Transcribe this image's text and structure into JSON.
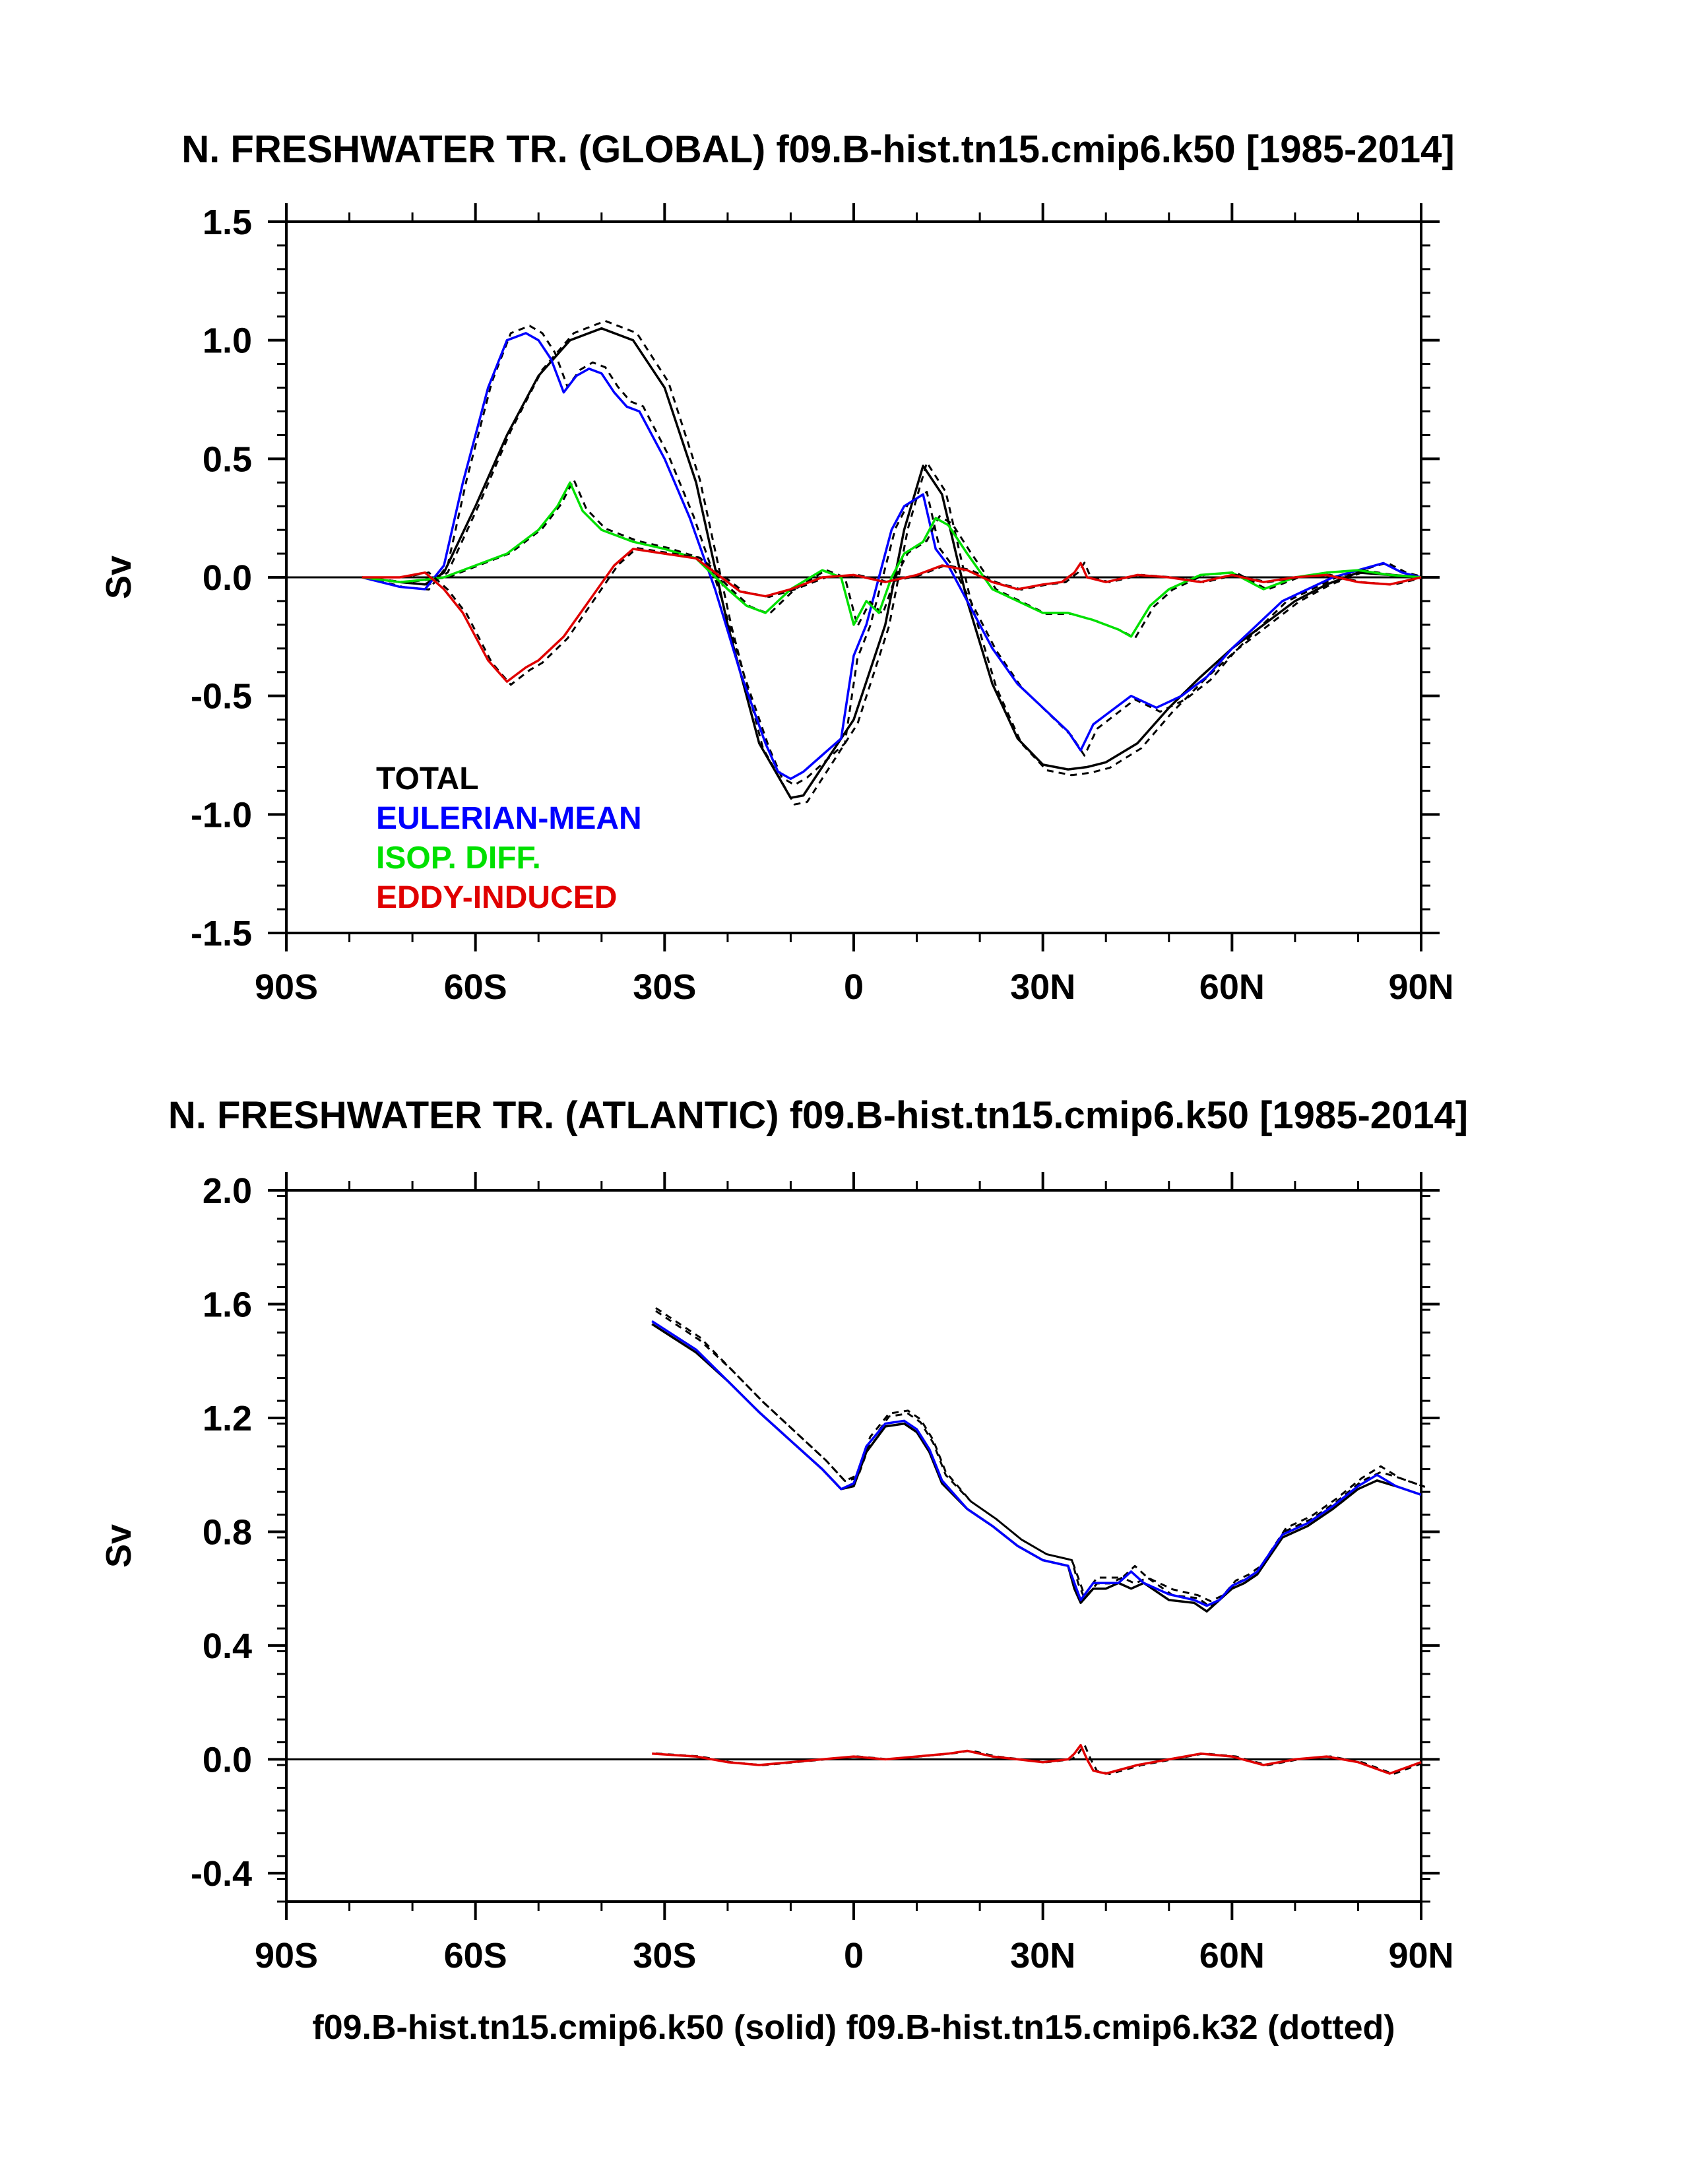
{
  "footer": "f09.B-hist.tn15.cmip6.k50 (solid) f09.B-hist.tn15.cmip6.k32 (dotted)",
  "colors": {
    "total": "#000000",
    "eulerian": "#0000ff",
    "isop": "#00e000",
    "eddy": "#e00000"
  },
  "chart_data": [
    {
      "type": "line",
      "title": "N. FRESHWATER TR. (GLOBAL) f09.B-hist.tn15.cmip6.k50 [1985-2014]",
      "xlabel": "",
      "ylabel": "Sv",
      "xlim": [
        -90,
        90
      ],
      "ylim": [
        -1.5,
        1.5
      ],
      "x_ticks": [
        -90,
        -60,
        -30,
        0,
        30,
        60,
        90
      ],
      "x_tick_labels": [
        "90S",
        "60S",
        "30S",
        "0",
        "30N",
        "60N",
        "90N"
      ],
      "y_ticks": [
        1.5,
        1.0,
        0.5,
        0.0,
        -0.5,
        -1.0,
        -1.5
      ],
      "y_tick_labels": [
        "1.5",
        "1.0",
        "0.5",
        "0.0",
        "-0.5",
        "-1.0",
        "-1.5"
      ],
      "legend": {
        "position": "lower-left",
        "entries": [
          "TOTAL",
          "EULERIAN-MEAN",
          "ISOP. DIFF.",
          "EDDY-INDUCED"
        ]
      },
      "series": [
        {
          "name": "TOTAL",
          "color": "#000000",
          "style": "solid",
          "x": [
            -78,
            -72,
            -68,
            -65,
            -60,
            -55,
            -50,
            -45,
            -40,
            -35,
            -30,
            -25,
            -20,
            -15,
            -10,
            -8,
            -5,
            0,
            5,
            8,
            11,
            14,
            18,
            22,
            26,
            30,
            34,
            37,
            40,
            45,
            50,
            55,
            60,
            65,
            70,
            75,
            80,
            85,
            90
          ],
          "y": [
            0,
            -0.02,
            -0.03,
            0.02,
            0.3,
            0.6,
            0.85,
            1.0,
            1.05,
            1.0,
            0.8,
            0.4,
            -0.2,
            -0.7,
            -0.93,
            -0.92,
            -0.8,
            -0.6,
            -0.2,
            0.2,
            0.47,
            0.35,
            -0.1,
            -0.45,
            -0.68,
            -0.79,
            -0.81,
            -0.8,
            -0.78,
            -0.7,
            -0.55,
            -0.42,
            -0.3,
            -0.2,
            -0.1,
            -0.03,
            0.02,
            0.01,
            0
          ]
        },
        {
          "name": "EULERIAN-MEAN",
          "color": "#0000ff",
          "style": "solid",
          "x": [
            -78,
            -72,
            -68,
            -65,
            -62,
            -58,
            -55,
            -52,
            -50,
            -48,
            -46,
            -44,
            -42,
            -40,
            -38,
            -36,
            -34,
            -30,
            -26,
            -22,
            -18,
            -14,
            -12,
            -10,
            -8,
            -5,
            -2,
            0,
            2,
            4,
            6,
            8,
            11,
            13,
            15,
            18,
            22,
            26,
            30,
            34,
            36,
            38,
            40,
            44,
            48,
            52,
            56,
            60,
            64,
            68,
            72,
            76,
            80,
            84,
            87,
            90
          ],
          "y": [
            0,
            -0.04,
            -0.05,
            0.05,
            0.4,
            0.8,
            1.0,
            1.03,
            1.0,
            0.92,
            0.78,
            0.85,
            0.88,
            0.86,
            0.78,
            0.72,
            0.7,
            0.5,
            0.25,
            -0.05,
            -0.4,
            -0.7,
            -0.82,
            -0.85,
            -0.82,
            -0.75,
            -0.68,
            -0.33,
            -0.2,
            0.0,
            0.2,
            0.3,
            0.35,
            0.12,
            0.05,
            -0.1,
            -0.3,
            -0.45,
            -0.55,
            -0.65,
            -0.73,
            -0.62,
            -0.58,
            -0.5,
            -0.55,
            -0.5,
            -0.42,
            -0.3,
            -0.2,
            -0.1,
            -0.05,
            0.0,
            0.03,
            0.06,
            0.02,
            0
          ]
        },
        {
          "name": "ISOP. DIFF.",
          "color": "#00e000",
          "style": "solid",
          "x": [
            -78,
            -72,
            -68,
            -65,
            -60,
            -55,
            -50,
            -47,
            -45,
            -43,
            -40,
            -35,
            -30,
            -25,
            -20,
            -17,
            -14,
            -10,
            -5,
            -2,
            0,
            2,
            4,
            6,
            8,
            11,
            13,
            15,
            18,
            22,
            26,
            30,
            34,
            38,
            42,
            44,
            47,
            50,
            55,
            60,
            65,
            70,
            75,
            80,
            85,
            90
          ],
          "y": [
            0,
            -0.02,
            -0.01,
            0.0,
            0.05,
            0.1,
            0.2,
            0.3,
            0.4,
            0.28,
            0.2,
            0.15,
            0.12,
            0.08,
            -0.05,
            -0.12,
            -0.15,
            -0.05,
            0.03,
            0.0,
            -0.2,
            -0.1,
            -0.15,
            0.0,
            0.1,
            0.15,
            0.25,
            0.22,
            0.1,
            -0.05,
            -0.1,
            -0.15,
            -0.15,
            -0.18,
            -0.22,
            -0.25,
            -0.12,
            -0.05,
            0.01,
            0.02,
            -0.05,
            0.0,
            0.02,
            0.03,
            0.01,
            0
          ]
        },
        {
          "name": "EDDY-INDUCED",
          "color": "#e00000",
          "style": "solid",
          "x": [
            -78,
            -72,
            -68,
            -65,
            -62,
            -58,
            -55,
            -52,
            -50,
            -46,
            -42,
            -38,
            -35,
            -30,
            -25,
            -22,
            -18,
            -14,
            -10,
            -5,
            0,
            5,
            10,
            14,
            18,
            22,
            26,
            30,
            33,
            35,
            36,
            37,
            40,
            45,
            50,
            55,
            60,
            65,
            70,
            75,
            80,
            85,
            90
          ],
          "y": [
            0,
            0.0,
            0.02,
            -0.05,
            -0.15,
            -0.35,
            -0.44,
            -0.38,
            -0.35,
            -0.25,
            -0.1,
            0.05,
            0.12,
            0.1,
            0.08,
            0.02,
            -0.06,
            -0.08,
            -0.05,
            0.0,
            0.01,
            -0.02,
            0.01,
            0.05,
            0.03,
            -0.02,
            -0.05,
            -0.03,
            -0.02,
            0.02,
            0.06,
            0.0,
            -0.02,
            0.01,
            0.0,
            -0.02,
            0.01,
            -0.02,
            0.0,
            0.01,
            -0.02,
            -0.03,
            0
          ]
        }
      ]
    },
    {
      "type": "line",
      "title": "N. FRESHWATER TR. (ATLANTIC) f09.B-hist.tn15.cmip6.k50 [1985-2014]",
      "xlabel": "f09.B-hist.tn15.cmip6.k50 (solid) f09.B-hist.tn15.cmip6.k32 (dotted)",
      "ylabel": "Sv",
      "xlim": [
        -90,
        90
      ],
      "ylim": [
        -0.5,
        2.0
      ],
      "x_ticks": [
        -90,
        -60,
        -30,
        0,
        30,
        60,
        90
      ],
      "x_tick_labels": [
        "90S",
        "60S",
        "30S",
        "0",
        "30N",
        "60N",
        "90N"
      ],
      "y_ticks": [
        2.0,
        1.6,
        1.2,
        0.8,
        0.4,
        0.0,
        -0.4
      ],
      "y_tick_labels": [
        "2.0",
        "1.6",
        "1.2",
        "0.8",
        "0.4",
        "0.0",
        "-0.4"
      ],
      "series": [
        {
          "name": "TOTAL",
          "color": "#000000",
          "style": "solid",
          "x": [
            -32,
            -25,
            -20,
            -15,
            -10,
            -5,
            -2,
            0,
            2,
            5,
            8,
            10,
            12,
            14,
            18,
            22,
            26,
            30,
            34,
            35,
            36,
            38,
            40,
            42,
            44,
            46,
            50,
            54,
            56,
            58,
            60,
            62,
            64,
            68,
            72,
            76,
            80,
            83,
            86,
            90
          ],
          "y": [
            1.53,
            1.43,
            1.33,
            1.22,
            1.12,
            1.02,
            0.95,
            0.96,
            1.08,
            1.17,
            1.18,
            1.15,
            1.08,
            0.97,
            0.88,
            0.82,
            0.75,
            0.7,
            0.68,
            0.6,
            0.55,
            0.6,
            0.6,
            0.62,
            0.6,
            0.62,
            0.56,
            0.55,
            0.52,
            0.56,
            0.6,
            0.62,
            0.65,
            0.78,
            0.82,
            0.88,
            0.95,
            0.98,
            0.96,
            0.93
          ]
        },
        {
          "name": "EULERIAN-MEAN",
          "color": "#0000ff",
          "style": "solid",
          "x": [
            -32,
            -25,
            -20,
            -15,
            -10,
            -5,
            -2,
            0,
            2,
            5,
            8,
            10,
            12,
            14,
            18,
            22,
            26,
            30,
            34,
            35,
            36,
            38,
            40,
            42,
            44,
            46,
            50,
            54,
            56,
            58,
            60,
            62,
            64,
            68,
            72,
            76,
            80,
            83,
            86,
            90
          ],
          "y": [
            1.54,
            1.44,
            1.33,
            1.22,
            1.12,
            1.02,
            0.95,
            0.97,
            1.1,
            1.18,
            1.19,
            1.16,
            1.09,
            0.98,
            0.88,
            0.82,
            0.75,
            0.7,
            0.68,
            0.62,
            0.56,
            0.62,
            0.62,
            0.62,
            0.66,
            0.62,
            0.58,
            0.56,
            0.54,
            0.56,
            0.61,
            0.63,
            0.66,
            0.79,
            0.83,
            0.89,
            0.96,
            1.0,
            0.96,
            0.93
          ]
        },
        {
          "name": "EDDY-INDUCED",
          "color": "#e00000",
          "style": "solid",
          "x": [
            -32,
            -25,
            -20,
            -15,
            -10,
            -5,
            0,
            5,
            10,
            15,
            18,
            22,
            26,
            30,
            34,
            35,
            36,
            37,
            38,
            40,
            45,
            50,
            55,
            60,
            65,
            70,
            75,
            80,
            85,
            90
          ],
          "y": [
            0.02,
            0.01,
            -0.01,
            -0.02,
            -0.01,
            0.0,
            0.01,
            0.0,
            0.01,
            0.02,
            0.03,
            0.01,
            0.0,
            -0.01,
            0.0,
            0.02,
            0.05,
            0.0,
            -0.04,
            -0.05,
            -0.02,
            0.0,
            0.02,
            0.01,
            -0.02,
            0.0,
            0.01,
            -0.01,
            -0.05,
            -0.01
          ]
        }
      ]
    }
  ]
}
